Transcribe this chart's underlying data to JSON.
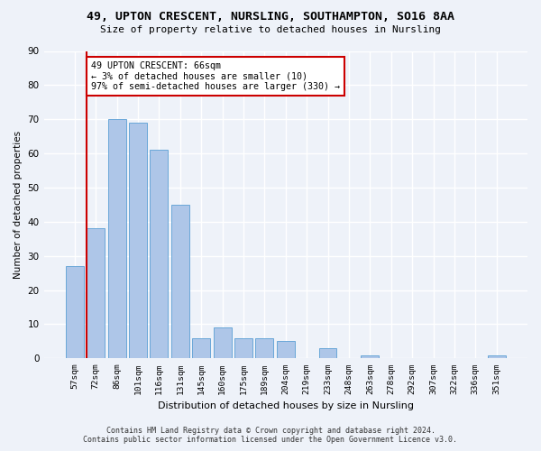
{
  "title1": "49, UPTON CRESCENT, NURSLING, SOUTHAMPTON, SO16 8AA",
  "title2": "Size of property relative to detached houses in Nursling",
  "xlabel": "Distribution of detached houses by size in Nursling",
  "ylabel": "Number of detached properties",
  "categories": [
    "57sqm",
    "72sqm",
    "86sqm",
    "101sqm",
    "116sqm",
    "131sqm",
    "145sqm",
    "160sqm",
    "175sqm",
    "189sqm",
    "204sqm",
    "219sqm",
    "233sqm",
    "248sqm",
    "263sqm",
    "278sqm",
    "292sqm",
    "307sqm",
    "322sqm",
    "336sqm",
    "351sqm"
  ],
  "values": [
    27,
    38,
    70,
    69,
    61,
    45,
    6,
    9,
    6,
    6,
    5,
    0,
    3,
    0,
    1,
    0,
    0,
    0,
    0,
    0,
    1
  ],
  "bar_color": "#aec6e8",
  "bar_edge_color": "#5a9fd4",
  "annotation_line1": "49 UPTON CRESCENT: 66sqm",
  "annotation_line2": "← 3% of detached houses are smaller (10)",
  "annotation_line3": "97% of semi-detached houses are larger (330) →",
  "annotation_box_color": "#ffffff",
  "annotation_box_edge": "#cc0000",
  "vline_color": "#cc0000",
  "ylim": [
    0,
    90
  ],
  "yticks": [
    0,
    10,
    20,
    30,
    40,
    50,
    60,
    70,
    80,
    90
  ],
  "footer1": "Contains HM Land Registry data © Crown copyright and database right 2024.",
  "footer2": "Contains public sector information licensed under the Open Government Licence v3.0.",
  "bg_color": "#eef2f9",
  "grid_color": "#ffffff"
}
